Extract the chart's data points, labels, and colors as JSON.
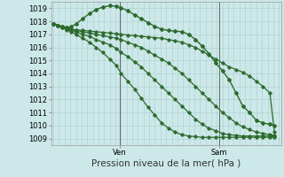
{
  "background_color": "#cce8e8",
  "plot_bg_color": "#cce8e8",
  "grid_color": "#aacece",
  "line_color": "#2d6a2d",
  "ylim": [
    1008.5,
    1019.5
  ],
  "yticks": [
    1009,
    1010,
    1011,
    1012,
    1013,
    1014,
    1015,
    1016,
    1017,
    1018,
    1019
  ],
  "xlabel": "Pression niveau de la mer( hPa )",
  "xlabel_fontsize": 7.5,
  "tick_fontsize": 6.0,
  "series": [
    {
      "x": [
        0.0,
        0.02,
        0.04,
        0.06,
        0.08,
        0.1,
        0.13,
        0.16,
        0.19,
        0.22,
        0.25,
        0.28,
        0.3,
        0.33,
        0.36,
        0.39,
        0.42,
        0.45,
        0.48,
        0.51,
        0.54,
        0.57,
        0.6,
        0.63,
        0.66,
        0.69,
        0.72,
        0.75,
        0.78,
        0.81,
        0.84,
        0.87,
        0.9,
        0.93,
        0.96,
        0.98
      ],
      "y": [
        1017.8,
        1017.7,
        1017.6,
        1017.5,
        1017.6,
        1017.8,
        1018.2,
        1018.6,
        1018.9,
        1019.1,
        1019.2,
        1019.15,
        1019.05,
        1018.8,
        1018.5,
        1018.2,
        1017.9,
        1017.6,
        1017.4,
        1017.3,
        1017.25,
        1017.2,
        1017.0,
        1016.6,
        1016.1,
        1015.5,
        1014.8,
        1014.2,
        1013.5,
        1012.5,
        1011.5,
        1011.0,
        1010.4,
        1010.2,
        1010.1,
        1010.0
      ],
      "marker": "D",
      "ms": 2.0,
      "lw": 1.0
    },
    {
      "x": [
        0.0,
        0.02,
        0.04,
        0.06,
        0.08,
        0.1,
        0.13,
        0.16,
        0.19,
        0.22,
        0.25,
        0.28,
        0.3,
        0.33,
        0.36,
        0.39,
        0.42,
        0.45,
        0.48,
        0.51,
        0.54,
        0.57,
        0.6,
        0.63,
        0.66,
        0.69,
        0.72,
        0.75,
        0.78,
        0.81,
        0.84,
        0.87,
        0.9,
        0.93,
        0.96,
        0.98
      ],
      "y": [
        1017.8,
        1017.7,
        1017.6,
        1017.5,
        1017.4,
        1017.35,
        1017.3,
        1017.25,
        1017.2,
        1017.15,
        1017.1,
        1017.05,
        1017.0,
        1016.95,
        1016.9,
        1016.85,
        1016.8,
        1016.75,
        1016.7,
        1016.6,
        1016.5,
        1016.4,
        1016.2,
        1016.0,
        1015.7,
        1015.4,
        1015.1,
        1014.8,
        1014.5,
        1014.3,
        1014.1,
        1013.8,
        1013.4,
        1013.0,
        1012.5,
        1009.5
      ],
      "marker": "P",
      "ms": 2.2,
      "lw": 0.9
    },
    {
      "x": [
        0.0,
        0.02,
        0.04,
        0.06,
        0.08,
        0.1,
        0.13,
        0.16,
        0.19,
        0.22,
        0.25,
        0.28,
        0.3,
        0.33,
        0.36,
        0.39,
        0.42,
        0.45,
        0.48,
        0.51,
        0.54,
        0.57,
        0.6,
        0.63,
        0.66,
        0.69,
        0.72,
        0.75,
        0.78,
        0.81,
        0.84,
        0.87,
        0.9,
        0.93,
        0.96,
        0.98
      ],
      "y": [
        1017.8,
        1017.7,
        1017.6,
        1017.5,
        1017.4,
        1017.3,
        1017.2,
        1017.1,
        1017.0,
        1016.9,
        1016.8,
        1016.7,
        1016.6,
        1016.4,
        1016.2,
        1016.0,
        1015.7,
        1015.4,
        1015.1,
        1014.8,
        1014.4,
        1014.0,
        1013.5,
        1013.0,
        1012.5,
        1012.0,
        1011.5,
        1011.0,
        1010.6,
        1010.2,
        1009.9,
        1009.7,
        1009.5,
        1009.4,
        1009.3,
        1009.25
      ],
      "marker": "P",
      "ms": 2.2,
      "lw": 0.9
    },
    {
      "x": [
        0.0,
        0.02,
        0.04,
        0.06,
        0.08,
        0.1,
        0.13,
        0.16,
        0.19,
        0.22,
        0.25,
        0.28,
        0.3,
        0.33,
        0.36,
        0.39,
        0.42,
        0.45,
        0.48,
        0.51,
        0.54,
        0.57,
        0.6,
        0.63,
        0.66,
        0.69,
        0.72,
        0.75,
        0.78,
        0.81,
        0.84,
        0.87,
        0.9,
        0.93,
        0.96,
        0.98
      ],
      "y": [
        1017.8,
        1017.7,
        1017.55,
        1017.4,
        1017.3,
        1017.2,
        1017.0,
        1016.85,
        1016.6,
        1016.4,
        1016.2,
        1015.9,
        1015.6,
        1015.3,
        1014.9,
        1014.5,
        1014.0,
        1013.5,
        1013.0,
        1012.5,
        1012.0,
        1011.5,
        1011.0,
        1010.5,
        1010.1,
        1009.8,
        1009.6,
        1009.4,
        1009.3,
        1009.25,
        1009.2,
        1009.2,
        1009.2,
        1009.2,
        1009.2,
        1009.2
      ],
      "marker": "P",
      "ms": 2.2,
      "lw": 0.9
    },
    {
      "x": [
        0.0,
        0.02,
        0.04,
        0.06,
        0.08,
        0.1,
        0.13,
        0.16,
        0.19,
        0.22,
        0.25,
        0.28,
        0.3,
        0.33,
        0.36,
        0.39,
        0.42,
        0.45,
        0.48,
        0.51,
        0.54,
        0.57,
        0.6,
        0.63,
        0.66,
        0.69,
        0.72,
        0.75,
        0.78,
        0.81,
        0.84,
        0.87,
        0.9,
        0.93,
        0.96,
        0.98
      ],
      "y": [
        1017.8,
        1017.65,
        1017.5,
        1017.35,
        1017.2,
        1017.0,
        1016.7,
        1016.4,
        1016.0,
        1015.6,
        1015.1,
        1014.6,
        1014.0,
        1013.4,
        1012.8,
        1012.1,
        1011.4,
        1010.8,
        1010.2,
        1009.8,
        1009.5,
        1009.3,
        1009.2,
        1009.15,
        1009.1,
        1009.1,
        1009.1,
        1009.1,
        1009.1,
        1009.1,
        1009.1,
        1009.1,
        1009.1,
        1009.1,
        1009.1,
        1009.1
      ],
      "marker": "P",
      "ms": 2.2,
      "lw": 0.9
    }
  ],
  "vlines": [
    0.295,
    0.735
  ],
  "vline_color": "#666666",
  "xtick_labels": [
    "Ven",
    "Sam"
  ],
  "xtick_positions": [
    0.295,
    0.735
  ]
}
